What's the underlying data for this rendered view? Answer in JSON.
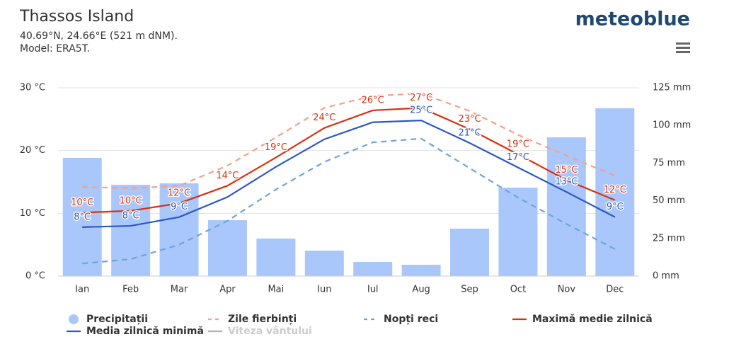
{
  "chart_data": {
    "type": "bar",
    "title": "Thassos Island",
    "subtitle": "40.69°N, 24.66°E (521 m dNM).",
    "model": "Model: ERA5T.",
    "brand": "meteoblue",
    "categories": [
      "Ian",
      "Feb",
      "Mar",
      "Apr",
      "Mai",
      "Iun",
      "Iul",
      "Aug",
      "Sep",
      "Oct",
      "Nov",
      "Dec"
    ],
    "ylim": [
      0,
      30
    ],
    "yticks": [
      {
        "value": 0,
        "label": "0 °C"
      },
      {
        "value": 10,
        "label": "10 °C"
      },
      {
        "value": 20,
        "label": "20 °C"
      },
      {
        "value": 30,
        "label": "30 °C"
      }
    ],
    "y2lim": [
      0,
      125
    ],
    "y2ticks": [
      {
        "value": 0,
        "label": "0 mm"
      },
      {
        "value": 25,
        "label": "25 mm"
      },
      {
        "value": 50,
        "label": "50 mm"
      },
      {
        "value": 75,
        "label": "75 mm"
      },
      {
        "value": 100,
        "label": "100 mm"
      },
      {
        "value": 125,
        "label": "125 mm"
      }
    ],
    "grid": true,
    "series": [
      {
        "name": "Precipitații",
        "type": "bar",
        "axis": "y2",
        "color": "#a9c7fb",
        "values": [
          78.5,
          60.6,
          61.6,
          37.1,
          24.9,
          16.9,
          9.4,
          7.5,
          31.5,
          58.7,
          92.1,
          111.4
        ]
      },
      {
        "name": "Zile fierbinți",
        "type": "line",
        "dash": true,
        "color": "#f5a08c",
        "values": [
          14.2,
          14.0,
          14.4,
          17.6,
          22.1,
          26.8,
          28.7,
          29.1,
          26.3,
          22.5,
          19.2,
          16.0
        ]
      },
      {
        "name": "Nopți reci",
        "type": "line",
        "dash": true,
        "color": "#6fa4dc",
        "values": [
          2.0,
          2.7,
          5.0,
          8.8,
          13.8,
          18.2,
          21.3,
          21.9,
          17.2,
          12.5,
          8.3,
          4.3
        ]
      },
      {
        "name": "Maximă medie zilnică",
        "type": "line",
        "color": "#d9300f",
        "values": [
          10.1,
          10.4,
          11.6,
          14.4,
          18.9,
          23.6,
          26.4,
          26.8,
          23.4,
          19.4,
          15.3,
          12.1
        ],
        "value_labels": [
          "10°C",
          "10°C",
          "12°C",
          "14°C",
          "19°C",
          "24°C",
          "26°C",
          "27°C",
          "23°C",
          "19°C",
          "15°C",
          "12°C"
        ]
      },
      {
        "name": "Media zilnică minimă",
        "type": "line",
        "color": "#2c57c5",
        "values": [
          7.8,
          8.0,
          9.4,
          12.6,
          17.4,
          21.8,
          24.5,
          24.8,
          21.2,
          17.3,
          13.4,
          9.4
        ],
        "value_labels": [
          "8°C",
          "8°C",
          "9°C",
          null,
          null,
          null,
          null,
          "25°C",
          "21°C",
          "17°C",
          "13°C",
          "9°C"
        ]
      },
      {
        "name": "Viteza vântului",
        "type": "line",
        "hidden": true,
        "color": "#b0b0b0",
        "values": [
          null,
          null,
          null,
          null,
          null,
          null,
          null,
          null,
          null,
          null,
          null,
          null
        ]
      }
    ]
  }
}
